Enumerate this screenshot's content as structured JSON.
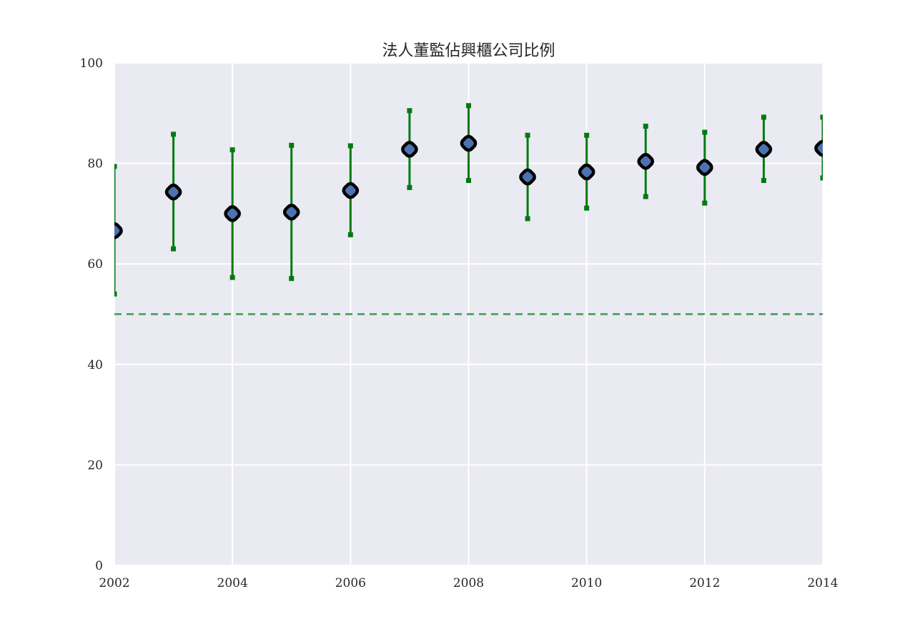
{
  "colors": {
    "background": "#eaeaf2",
    "grid": "#ffffff",
    "error_bar": "#007a0f",
    "marker_edge": "#000000",
    "marker_face": "#4c72b0",
    "reference_line": "#55a868"
  },
  "chart_data": {
    "type": "scatter",
    "title": "法人董監佔興櫃公司比例",
    "xlabel": "",
    "ylabel": "",
    "xlim": [
      2002,
      2014
    ],
    "ylim": [
      0,
      100
    ],
    "grid": true,
    "x_ticks": [
      2002,
      2004,
      2006,
      2008,
      2010,
      2012,
      2014
    ],
    "y_ticks": [
      0,
      20,
      40,
      60,
      80,
      100
    ],
    "x_tick_labels": [
      "2002",
      "2004",
      "2006",
      "2008",
      "2010",
      "2012",
      "2014"
    ],
    "y_tick_labels": [
      "0",
      "20",
      "40",
      "60",
      "80",
      "100"
    ],
    "reference_line": {
      "y": 50,
      "style": "dashed"
    },
    "series": [
      {
        "x": [
          2002,
          2003,
          2004,
          2005,
          2006,
          2007,
          2008,
          2009,
          2010,
          2011,
          2012,
          2013,
          2014
        ],
        "y": [
          66.6,
          74.3,
          70.0,
          70.3,
          74.6,
          82.8,
          84.0,
          77.3,
          78.3,
          80.4,
          79.2,
          82.8,
          83.0
        ],
        "error_low": [
          54.0,
          63.0,
          57.3,
          57.1,
          65.8,
          75.2,
          76.6,
          69.0,
          71.1,
          73.4,
          72.1,
          76.6,
          77.1
        ],
        "error_high": [
          79.4,
          85.8,
          82.7,
          83.6,
          83.5,
          90.5,
          91.5,
          85.6,
          85.6,
          87.4,
          86.2,
          89.2,
          89.2
        ]
      }
    ]
  }
}
